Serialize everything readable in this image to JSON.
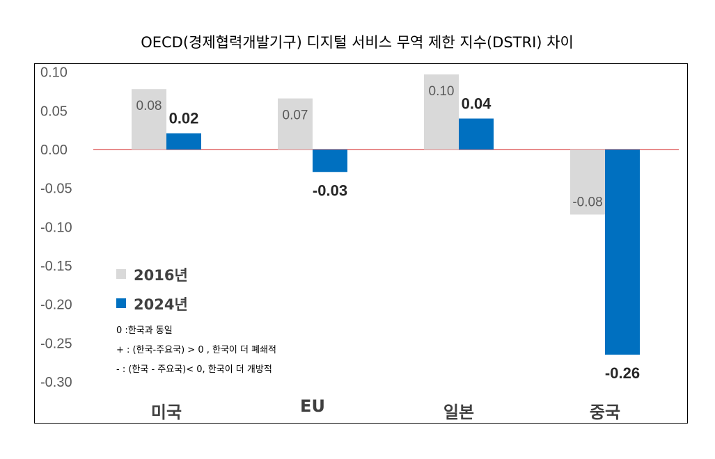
{
  "chart_data": {
    "type": "bar",
    "title": "OECD(경제협력개발기구) 디지털 서비스 무역 제한 지수(DSTRI) 차이",
    "categories": [
      "미국",
      "EU",
      "일본",
      "중국"
    ],
    "series": [
      {
        "name": "2016년",
        "values": [
          0.078,
          0.066,
          0.097,
          -0.084
        ],
        "labels": [
          "0.08",
          "0.07",
          "0.10",
          "-0.08"
        ],
        "color": "#d9d9d9"
      },
      {
        "name": "2024년",
        "values": [
          0.021,
          -0.029,
          0.04,
          -0.265
        ],
        "labels": [
          "0.02",
          "-0.03",
          "0.04",
          "-0.26"
        ],
        "color": "#0070c0"
      }
    ],
    "ylim": [
      -0.3,
      0.1
    ],
    "yticks": [
      "0.10",
      "0.05",
      "0.00",
      "-0.05",
      "-0.10",
      "-0.15",
      "-0.20",
      "-0.25",
      "-0.30"
    ],
    "ytick_values": [
      0.1,
      0.05,
      0.0,
      -0.05,
      -0.1,
      -0.15,
      -0.2,
      -0.25,
      -0.3
    ],
    "zero_line_color": "#e06666",
    "grid": false,
    "legend_position": "bottom-left",
    "notes": [
      "0 :한국과 동일",
      "+ : (한국-주요국) > 0 , 한국이 더 폐쇄적",
      "- : (한국 - 주요국)< 0, 한국이 더 개방적"
    ]
  }
}
